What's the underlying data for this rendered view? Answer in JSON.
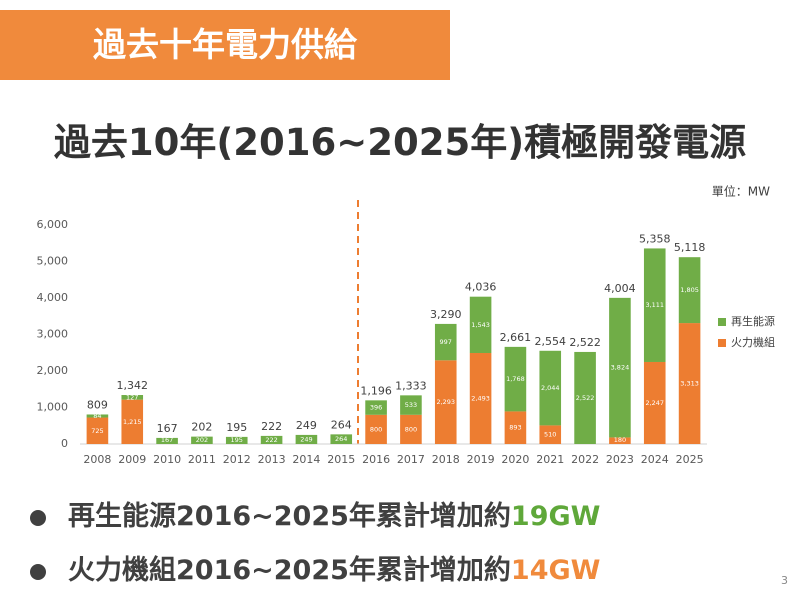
{
  "header": {
    "title": "過去十年電力供給"
  },
  "heading": "過去10年(2016~2025年)積極開發電源",
  "chart_data": {
    "type": "stacked_bar",
    "unit": "單位：MW",
    "categories": [
      "2008",
      "2009",
      "2010",
      "2011",
      "2012",
      "2013",
      "2014",
      "2015",
      "2016",
      "2017",
      "2018",
      "2019",
      "2020",
      "2021",
      "2022",
      "2023",
      "2024",
      "2025"
    ],
    "series": [
      {
        "name": "火力機組",
        "color": "#ed7d31",
        "values": [
          725,
          1215,
          0,
          0,
          0,
          0,
          0,
          0,
          800,
          800,
          2293,
          2493,
          893,
          510,
          0,
          180,
          2247,
          3313
        ],
        "value_labels": [
          "725",
          "1,215",
          null,
          null,
          null,
          null,
          null,
          null,
          "800",
          "800",
          "2,293",
          "2,493",
          "893",
          "510",
          null,
          "180",
          "2,247",
          "3,313"
        ]
      },
      {
        "name": "再生能源",
        "color": "#70ad47",
        "values": [
          84,
          127,
          167,
          202,
          195,
          222,
          249,
          264,
          396,
          533,
          997,
          1543,
          1768,
          2044,
          2522,
          3824,
          3111,
          1805
        ],
        "value_labels": [
          "84",
          "127",
          "167",
          "202",
          "195",
          "222",
          "249",
          "264",
          "396",
          "533",
          "997",
          "1,543",
          "1,768",
          "2,044",
          "2,522",
          "3,824",
          "3,111",
          "1,805"
        ]
      }
    ],
    "totals": {
      "values": [
        809,
        1342,
        167,
        202,
        195,
        222,
        249,
        264,
        1196,
        1333,
        3290,
        4036,
        2661,
        2554,
        2522,
        4004,
        5358,
        5118
      ],
      "value_labels": [
        "809",
        "1,342",
        "167",
        "202",
        "195",
        "222",
        "249",
        "264",
        "1,196",
        "1,333",
        "3,290",
        "4,036",
        "2,661",
        "2,554",
        "2,522",
        "4,004",
        "5,358",
        "5,118"
      ]
    },
    "ylim": [
      0,
      6000
    ],
    "yticks": [
      0,
      {
        "value": 1000,
        "label": "1,000"
      },
      {
        "value": 2000,
        "label": "2,000"
      },
      {
        "value": 3000,
        "label": "3,000"
      },
      {
        "value": 4000,
        "label": "4,000"
      },
      {
        "value": 5000,
        "label": "5,000"
      },
      {
        "value": 6000,
        "label": "6,000"
      }
    ],
    "grid": false,
    "legend": "right"
  },
  "bullets": [
    {
      "text": "再生能源2016~2025年累計增加約",
      "highlight": "19GW",
      "color": "#5fa83a"
    },
    {
      "text": "火力機組2016~2025年累計增加約",
      "highlight": "14GW",
      "color": "#f08a3c"
    }
  ],
  "page_number": "3"
}
